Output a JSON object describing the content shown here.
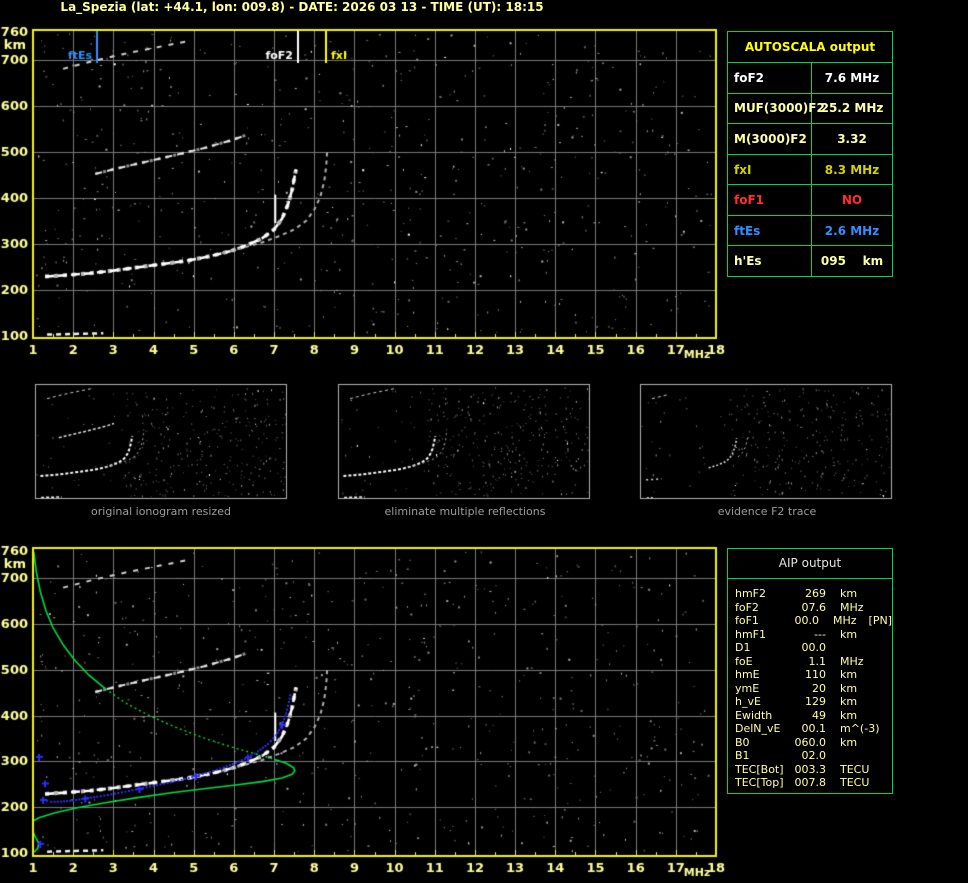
{
  "title": "La_Spezia (lat: +44.1, lon: 009.8) - DATE: 2026 03 13 - TIME (UT): 18:15",
  "colors": {
    "background": "#000000",
    "plot_border": "#f4f400",
    "grid": "#7a7a7a",
    "axis_text": "#ffff9c",
    "table_border": "#00d24a",
    "profile_green": "#00dc46",
    "fitted_blue": "#2e2eff",
    "caption_gray": "#9c9c9c"
  },
  "autoscala_table": {
    "header": "AUTOSCALA output",
    "rows": [
      {
        "label": "foF2",
        "value": "7.6 MHz",
        "color": "#ffffff"
      },
      {
        "label": "MUF(3000)F2",
        "value": "25.2 MHz",
        "color": "#ffffa4"
      },
      {
        "label": "M(3000)F2",
        "value": "3.32",
        "color": "#ffffa4"
      },
      {
        "label": "fxI",
        "value": "8.3 MHz",
        "color": "#d2d200"
      },
      {
        "label": "foF1",
        "value": "NO",
        "color": "#ff2f2f"
      },
      {
        "label": "ftEs",
        "value": "2.6 MHz",
        "color": "#3090ff"
      },
      {
        "label": "h'Es",
        "value": "095    km",
        "color": "#ffffa4"
      }
    ]
  },
  "aip_table": {
    "header": "AIP output",
    "rows": [
      {
        "label": "hmF2",
        "value": "269",
        "unit": "km"
      },
      {
        "label": "foF2",
        "value": "07.6",
        "unit": "MHz"
      },
      {
        "label": "foF1",
        "value": "00.0",
        "unit": "MHz",
        "extra": "[PN]"
      },
      {
        "label": "hmF1",
        "value": "---",
        "unit": "km"
      },
      {
        "label": "D1",
        "value": "00.0",
        "unit": ""
      },
      {
        "label": "foE",
        "value": "1.1",
        "unit": "MHz"
      },
      {
        "label": "hmE",
        "value": "110",
        "unit": "km"
      },
      {
        "label": "ymE",
        "value": "20",
        "unit": "km"
      },
      {
        "label": "h_vE",
        "value": "129",
        "unit": "km"
      },
      {
        "label": "Ewidth",
        "value": "49",
        "unit": "km"
      },
      {
        "label": "DelN_vE",
        "value": "00.1",
        "unit": "m^(-3)"
      },
      {
        "label": "B0",
        "value": "060.0",
        "unit": "km"
      },
      {
        "label": "B1",
        "value": "02.0",
        "unit": ""
      },
      {
        "label": "TEC[Bot]",
        "value": "003.3",
        "unit": "TECU"
      },
      {
        "label": "TEC[Top]",
        "value": "007.8",
        "unit": "TECU"
      }
    ]
  },
  "thumbnails": [
    {
      "caption": "original ionogram resized",
      "shows": [
        "upper multiple",
        "second hop multiple",
        "F2 trace (o-mode)",
        "F2 trace (x-mode)",
        "Es layer"
      ],
      "noise_dots": 330
    },
    {
      "caption": "eliminate multiple reflections",
      "shows": [
        "upper multiple",
        "F2 trace (o-mode)",
        "F2 trace (x-mode)",
        "Es layer"
      ],
      "noise_dots": 360
    },
    {
      "caption": "evidence F2 trace",
      "noise_dots": 300,
      "series": [
        {
          "name": "upper fragment",
          "points": [
            [
              1.75,
              680
            ],
            [
              2.9,
              705
            ]
          ]
        },
        {
          "name": "F2 asymptote",
          "points": [
            [
              5.6,
              276
            ],
            [
              6.2,
              292
            ],
            [
              6.7,
              310
            ],
            [
              7.0,
              330
            ],
            [
              7.2,
              356
            ],
            [
              7.35,
              388
            ],
            [
              7.45,
              420
            ],
            [
              7.5,
              450
            ]
          ]
        },
        {
          "name": "x asymptote",
          "points": [
            [
              7.6,
              340
            ],
            [
              7.9,
              365
            ],
            [
              8.1,
              398
            ],
            [
              8.2,
              432
            ],
            [
              8.28,
              468
            ]
          ]
        },
        {
          "name": "left fragment",
          "points": [
            [
              1.35,
              206
            ],
            [
              2.4,
              212
            ]
          ]
        },
        {
          "name": "Es fragment",
          "points": [
            [
              1.4,
              102
            ],
            [
              1.9,
              104
            ]
          ]
        }
      ]
    }
  ],
  "chart_data": [
    {
      "id": "top_ionogram",
      "type": "scatter",
      "xlabel": "MHz",
      "ylabel": "km",
      "xlim": [
        1,
        18
      ],
      "ylim": [
        100,
        760
      ],
      "xticks": [
        1,
        2,
        3,
        4,
        5,
        6,
        7,
        8,
        9,
        10,
        11,
        12,
        13,
        14,
        15,
        16,
        17,
        18
      ],
      "yticks": [
        100,
        200,
        300,
        400,
        500,
        600,
        700,
        760
      ],
      "grid": true,
      "noise_dots": 640,
      "markers": [
        {
          "name": "ftEs",
          "mhz": 2.6,
          "color": "#3090ff",
          "side": "left"
        },
        {
          "name": "foF2",
          "mhz": 7.6,
          "color": "#ffffff",
          "side": "left"
        },
        {
          "name": "fxI",
          "mhz": 8.3,
          "color": "#ffff00",
          "side": "right"
        }
      ],
      "series": [
        {
          "name": "F2 trace (o-mode)",
          "points": [
            [
              1.3,
              229
            ],
            [
              1.8,
              232
            ],
            [
              2.4,
              236
            ],
            [
              3.0,
              242
            ],
            [
              3.6,
              249
            ],
            [
              4.2,
              256
            ],
            [
              4.8,
              263
            ],
            [
              5.4,
              273
            ],
            [
              5.9,
              284
            ],
            [
              6.3,
              296
            ],
            [
              6.7,
              312
            ],
            [
              7.0,
              331
            ],
            [
              7.2,
              355
            ],
            [
              7.35,
              386
            ],
            [
              7.45,
              418
            ],
            [
              7.52,
              450
            ],
            [
              7.55,
              462
            ]
          ]
        },
        {
          "name": "F2 trace (x-mode)",
          "points": [
            [
              5.7,
              280
            ],
            [
              6.2,
              291
            ],
            [
              6.7,
              303
            ],
            [
              7.1,
              316
            ],
            [
              7.5,
              331
            ],
            [
              7.8,
              350
            ],
            [
              8.0,
              374
            ],
            [
              8.15,
              402
            ],
            [
              8.25,
              436
            ],
            [
              8.3,
              470
            ],
            [
              8.32,
              500
            ]
          ]
        },
        {
          "name": "second hop multiple",
          "points": [
            [
              2.55,
              452
            ],
            [
              3.2,
              466
            ],
            [
              3.9,
              480
            ],
            [
              4.6,
              494
            ],
            [
              5.3,
              509
            ],
            [
              5.9,
              524
            ],
            [
              6.3,
              536
            ]
          ]
        },
        {
          "name": "upper multiple",
          "points": [
            [
              1.75,
              680
            ],
            [
              2.5,
              697
            ],
            [
              3.3,
              713
            ],
            [
              4.1,
              727
            ],
            [
              4.9,
              741
            ]
          ]
        },
        {
          "name": "Es layer",
          "points": [
            [
              1.35,
              103
            ],
            [
              1.8,
              104
            ],
            [
              2.3,
              105
            ],
            [
              2.75,
              106
            ]
          ]
        },
        {
          "name": "vertical streak",
          "points": [
            [
              7.03,
              345
            ],
            [
              7.03,
              407
            ]
          ]
        }
      ]
    },
    {
      "id": "bottom_profile_ionogram",
      "type": "scatter",
      "xlabel": "MHz",
      "ylabel": "km",
      "xlim": [
        1,
        18
      ],
      "ylim": [
        100,
        760
      ],
      "xticks": [
        1,
        2,
        3,
        4,
        5,
        6,
        7,
        8,
        9,
        10,
        11,
        12,
        13,
        14,
        15,
        16,
        17,
        18
      ],
      "yticks": [
        100,
        200,
        300,
        400,
        500,
        600,
        700,
        760
      ],
      "grid": true,
      "noise_dots": 620,
      "series_ref": "top_ionogram",
      "profile": {
        "name": "electron density profile",
        "color": "#00dc46",
        "topside": [
          [
            1.02,
            758
          ],
          [
            1.08,
            716
          ],
          [
            1.18,
            672
          ],
          [
            1.32,
            630
          ],
          [
            1.5,
            592
          ],
          [
            1.75,
            555
          ],
          [
            2.05,
            520
          ],
          [
            2.4,
            488
          ],
          [
            2.8,
            459
          ]
        ],
        "middle_dotted": [
          [
            2.8,
            459
          ],
          [
            3.3,
            428
          ],
          [
            3.9,
            400
          ],
          [
            4.6,
            373
          ],
          [
            5.3,
            350
          ],
          [
            6.0,
            330
          ],
          [
            6.6,
            315
          ],
          [
            7.0,
            305
          ]
        ],
        "bottomside": [
          [
            7.0,
            305
          ],
          [
            7.3,
            296
          ],
          [
            7.48,
            287
          ],
          [
            7.52,
            280
          ],
          [
            7.45,
            272
          ],
          [
            7.2,
            264
          ],
          [
            6.7,
            256
          ],
          [
            6.0,
            248
          ],
          [
            5.2,
            240
          ],
          [
            4.4,
            231
          ],
          [
            3.6,
            221
          ],
          [
            2.8,
            210
          ],
          [
            2.1,
            199
          ],
          [
            1.55,
            188
          ],
          [
            1.15,
            177
          ],
          [
            1.0,
            170
          ]
        ],
        "e_layer": [
          [
            1.0,
            146
          ],
          [
            1.07,
            133
          ],
          [
            1.14,
            122
          ],
          [
            1.12,
            110
          ],
          [
            1.03,
            102
          ]
        ]
      },
      "fitted_trace": {
        "name": "scaled F2 trace points",
        "color": "#2e2eff",
        "points": [
          [
            1.25,
            216
          ],
          [
            1.45,
            212
          ],
          [
            1.7,
            212
          ],
          [
            2.0,
            215
          ],
          [
            2.3,
            219
          ],
          [
            2.6,
            223
          ],
          [
            2.95,
            228
          ],
          [
            3.3,
            234
          ],
          [
            3.65,
            240
          ],
          [
            4.0,
            247
          ],
          [
            4.35,
            253
          ],
          [
            4.7,
            260
          ],
          [
            5.05,
            268
          ],
          [
            5.4,
            277
          ],
          [
            5.75,
            287
          ],
          [
            6.05,
            297
          ],
          [
            6.35,
            309
          ],
          [
            6.6,
            322
          ],
          [
            6.85,
            338
          ],
          [
            7.05,
            357
          ],
          [
            7.2,
            380
          ],
          [
            7.3,
            405
          ],
          [
            7.37,
            430
          ],
          [
            7.42,
            452
          ]
        ],
        "isolated": [
          [
            1.15,
            310
          ],
          [
            1.3,
            252
          ],
          [
            1.18,
            120
          ]
        ]
      }
    }
  ]
}
